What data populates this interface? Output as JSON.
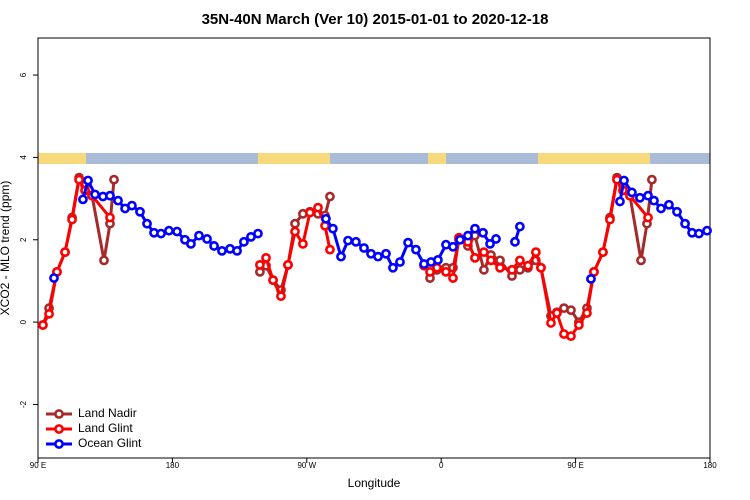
{
  "chart_data": {
    "type": "line",
    "title": "35N-40N March (Ver 10)   2015-01-01 to 2020-12-18",
    "x_label": "Longitude",
    "y_label": "XCO2 - MLO trend (ppm)",
    "xlim": [
      90,
      540
    ],
    "ylim": [
      -3.3,
      6.9
    ],
    "xticks": [
      {
        "value": 90,
        "label": "90 E"
      },
      180,
      {
        "value": 270,
        "label": "90 W"
      },
      {
        "value": 360,
        "label": "0"
      },
      {
        "value": 450,
        "label": "90 E"
      },
      {
        "value": 540,
        "label": "180"
      }
    ],
    "yticks": [
      -2,
      0,
      2,
      4,
      6
    ],
    "legend": "bottom-left",
    "series": [
      {
        "name": "Land Nadir",
        "color": "#a52a2a",
        "x": [
          93.3,
          97.4,
          102.7,
          108.1,
          112.8,
          117.5,
          121.5,
          126.2,
          134.2,
          138.2,
          140.9,
          null,
          238.6,
          242.7,
          247.4,
          252.7,
          257.4,
          262.1,
          267.4,
          272.1,
          277.5,
          282.2,
          285.5,
          null,
          352.5,
          357.2,
          363.2,
          367.9,
          371.9,
          377.9,
          382.6,
          388.6,
          393.3,
          399.4,
          407.4,
          412.7,
          418.1,
          423.4,
          426.8,
          433.5,
          437.5,
          442.2,
          446.9,
          452.2,
          457.6,
          462.3,
          468.3,
          473,
          477.7,
          481.7,
          486.4,
          493.8,
          497.8,
          501.1
        ],
        "values": [
          -0.07,
          0.34,
          1.22,
          1.7,
          2.54,
          3.51,
          3.32,
          3.07,
          1.5,
          2.39,
          3.46,
          null,
          1.22,
          1.37,
          1.02,
          0.78,
          1.39,
          2.39,
          2.63,
          2.68,
          2.63,
          2.59,
          3.05,
          null,
          1.07,
          1.27,
          1.32,
          1.32,
          2.0,
          1.85,
          2.1,
          1.27,
          1.63,
          1.5,
          1.12,
          1.27,
          1.32,
          1.5,
          1.32,
          0.15,
          0.24,
          0.34,
          0.29,
          0.0,
          0.34,
          1.22,
          1.7,
          2.54,
          3.51,
          3.32,
          3.07,
          1.5,
          2.39,
          3.46
        ]
      },
      {
        "name": "Land Glint",
        "color": "#ff0000",
        "x": [
          93.3,
          97.4,
          102.7,
          108.1,
          112.8,
          117.5,
          121.5,
          126.2,
          138.2,
          null,
          238.6,
          242.7,
          247.4,
          252.7,
          257.4,
          262.1,
          267.4,
          272.1,
          277.5,
          282.2,
          285.5,
          null,
          348.5,
          352.5,
          357.2,
          363.2,
          367.9,
          371.9,
          377.9,
          382.6,
          388.6,
          393.3,
          399.4,
          407.4,
          412.7,
          418.1,
          423.4,
          426.8,
          433.5,
          437.5,
          442.2,
          446.9,
          452.2,
          457.6,
          462.3,
          468.3,
          473,
          477.7,
          481.7,
          486.4,
          498.5
        ],
        "values": [
          -0.07,
          0.2,
          1.22,
          1.7,
          2.49,
          3.46,
          3.2,
          3.07,
          2.54,
          null,
          1.39,
          1.56,
          1.02,
          0.63,
          1.39,
          2.2,
          1.9,
          2.66,
          2.78,
          2.34,
          1.76,
          null,
          1.37,
          1.22,
          1.32,
          1.22,
          1.07,
          2.05,
          1.95,
          1.56,
          1.7,
          1.5,
          1.32,
          1.27,
          1.5,
          1.37,
          1.7,
          1.32,
          -0.02,
          0.22,
          -0.29,
          -0.34,
          -0.07,
          0.22,
          1.22,
          1.7,
          2.49,
          3.46,
          3.2,
          3.07,
          2.54
        ]
      },
      {
        "name": "Ocean Glint",
        "color": "#0000ff",
        "x": [
          100.7,
          null,
          120.1,
          123.5,
          128.2,
          133.5,
          138.2,
          143.6,
          148.3,
          152.9,
          158.3,
          163,
          167.7,
          172.4,
          177.7,
          183.1,
          188.4,
          192.4,
          197.8,
          203.2,
          207.9,
          213.2,
          218.6,
          223.3,
          227.9,
          232.6,
          237.3,
          null,
          282.8,
          287.5,
          292.9,
          297.6,
          302.9,
          308.3,
          313,
          317.7,
          323,
          327.7,
          332.4,
          337.8,
          343.1,
          348.5,
          353.2,
          357.8,
          363.2,
          367.9,
          372.6,
          377.9,
          382.6,
          388,
          392.7,
          396.7,
          null,
          409.4,
          412.7,
          null,
          460.3,
          null,
          479.7,
          482.4,
          487.7,
          493.1,
          498.5,
          502.5,
          507.2,
          512.5,
          517.9,
          523.3,
          528,
          532.6,
          538
        ],
        "values": [
          1.07,
          null,
          2.98,
          3.44,
          3.1,
          3.05,
          3.07,
          2.95,
          2.76,
          2.83,
          2.68,
          2.39,
          2.17,
          2.15,
          2.22,
          2.2,
          2.0,
          1.9,
          2.1,
          2.02,
          1.85,
          1.73,
          1.78,
          1.73,
          1.95,
          2.07,
          2.15,
          null,
          2.51,
          2.27,
          1.59,
          1.98,
          1.95,
          1.8,
          1.66,
          1.59,
          1.66,
          1.32,
          1.46,
          1.93,
          1.76,
          1.41,
          1.46,
          1.51,
          1.88,
          1.83,
          2.0,
          2.1,
          2.27,
          2.17,
          1.9,
          2.02,
          null,
          1.95,
          2.32,
          null,
          1.05,
          null,
          2.93,
          3.44,
          3.15,
          3.02,
          3.07,
          2.95,
          2.76,
          2.85,
          2.68,
          2.39,
          2.17,
          2.15,
          2.22
        ]
      }
    ]
  }
}
